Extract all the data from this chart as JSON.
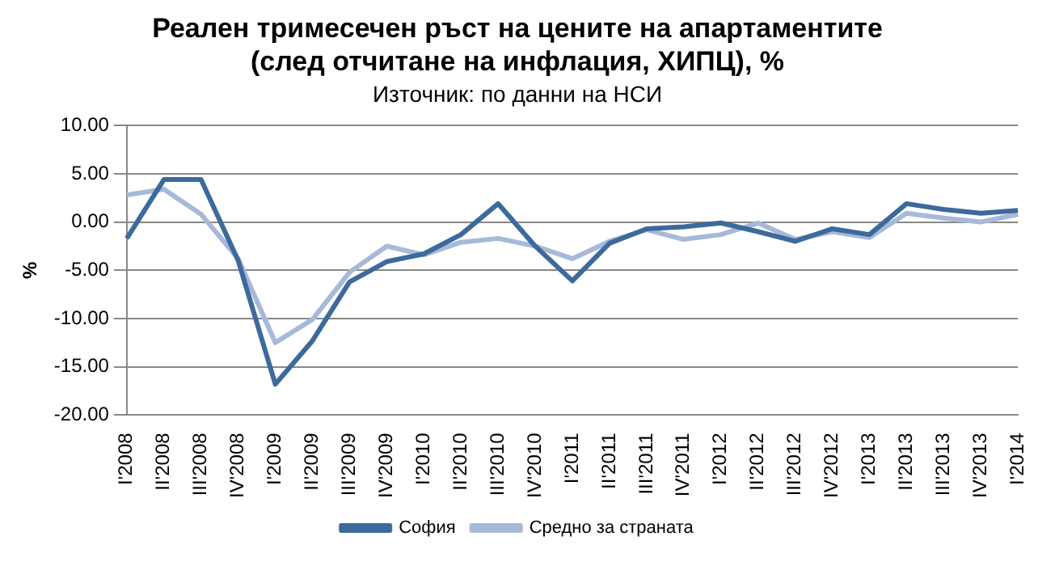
{
  "chart_data": {
    "type": "line",
    "title": [
      "Реален тримесечен ръст на цените на апартаментите",
      "(след отчитане на инфлация, ХИПЦ), %"
    ],
    "subtitle": "Източник: по данни на НСИ",
    "ylabel": "%",
    "categories": [
      "I'2008",
      "II'2008",
      "III'2008",
      "IV'2008",
      "I'2009",
      "II'2009",
      "III'2009",
      "IV'2009",
      "I'2010",
      "II'2010",
      "III'2010",
      "IV'2010",
      "I'2011",
      "II'2011",
      "III'2011",
      "IV'2011",
      "I'2012",
      "II'2012",
      "III'2012",
      "IV'2012",
      "I'2013",
      "II'2013",
      "III'2013",
      "IV'2013",
      "I'2014"
    ],
    "series": [
      {
        "name": "София",
        "color": "#3d6a9c",
        "values": [
          -1.7,
          4.4,
          4.4,
          -4.0,
          -16.8,
          -12.3,
          -6.2,
          -4.1,
          -3.3,
          -1.3,
          1.9,
          -2.5,
          -6.1,
          -2.2,
          -0.7,
          -0.5,
          -0.1,
          -1.0,
          -2.0,
          -0.7,
          -1.3,
          1.9,
          1.3,
          0.9,
          1.2
        ]
      },
      {
        "name": "Средно за страната",
        "color": "#a6b9d9",
        "values": [
          2.8,
          3.4,
          0.8,
          -3.8,
          -12.5,
          -10.1,
          -5.2,
          -2.5,
          -3.4,
          -2.1,
          -1.7,
          -2.5,
          -3.8,
          -2.0,
          -0.8,
          -1.8,
          -1.3,
          -0.1,
          -1.8,
          -1.0,
          -1.6,
          0.9,
          0.4,
          0.0,
          0.8
        ]
      }
    ],
    "ylim": [
      -20,
      10
    ],
    "yticks": [
      {
        "value": -20,
        "label": "-20.00"
      },
      {
        "value": -15,
        "label": "-15.00"
      },
      {
        "value": -10,
        "label": "-10.00"
      },
      {
        "value": -5,
        "label": "-5.00"
      },
      {
        "value": 0,
        "label": "0.00"
      },
      {
        "value": 5,
        "label": "5.00"
      },
      {
        "value": 10,
        "label": "10.00"
      }
    ],
    "grid": "y",
    "legend": "bottom",
    "marker": "none",
    "line_style": "solid"
  }
}
